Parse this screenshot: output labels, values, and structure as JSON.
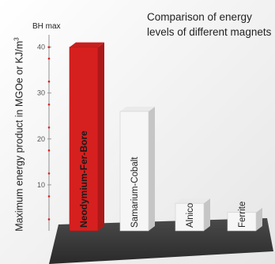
{
  "chart_data": {
    "type": "bar",
    "title": "Comparison of energy levels of different magnets",
    "title_lines": [
      "Comparison of energy",
      "levels of different magnets"
    ],
    "ylabel": "Maximum energy product in MGOe or KJ/m³",
    "ylabel_prefix": "Maximum energy product in MGOe or KJ/m",
    "ylabel_sup": "3",
    "ymax_label": "BH max",
    "ylim": [
      0,
      42
    ],
    "yticks": [
      10,
      20,
      30,
      40
    ],
    "categories": [
      "Neodymium-Fer-Bore",
      "Samarium-Cobalt",
      "Alnico",
      "Ferrite"
    ],
    "values": [
      40,
      26,
      6,
      4
    ],
    "colors": [
      "#d6201f",
      "#f6f6f6",
      "#f6f6f6",
      "#f6f6f6"
    ],
    "label_colors": [
      "#1a1a1a",
      "#222222",
      "#222222",
      "#222222"
    ],
    "label_bold": [
      true,
      false,
      false,
      false
    ],
    "grid": false
  }
}
